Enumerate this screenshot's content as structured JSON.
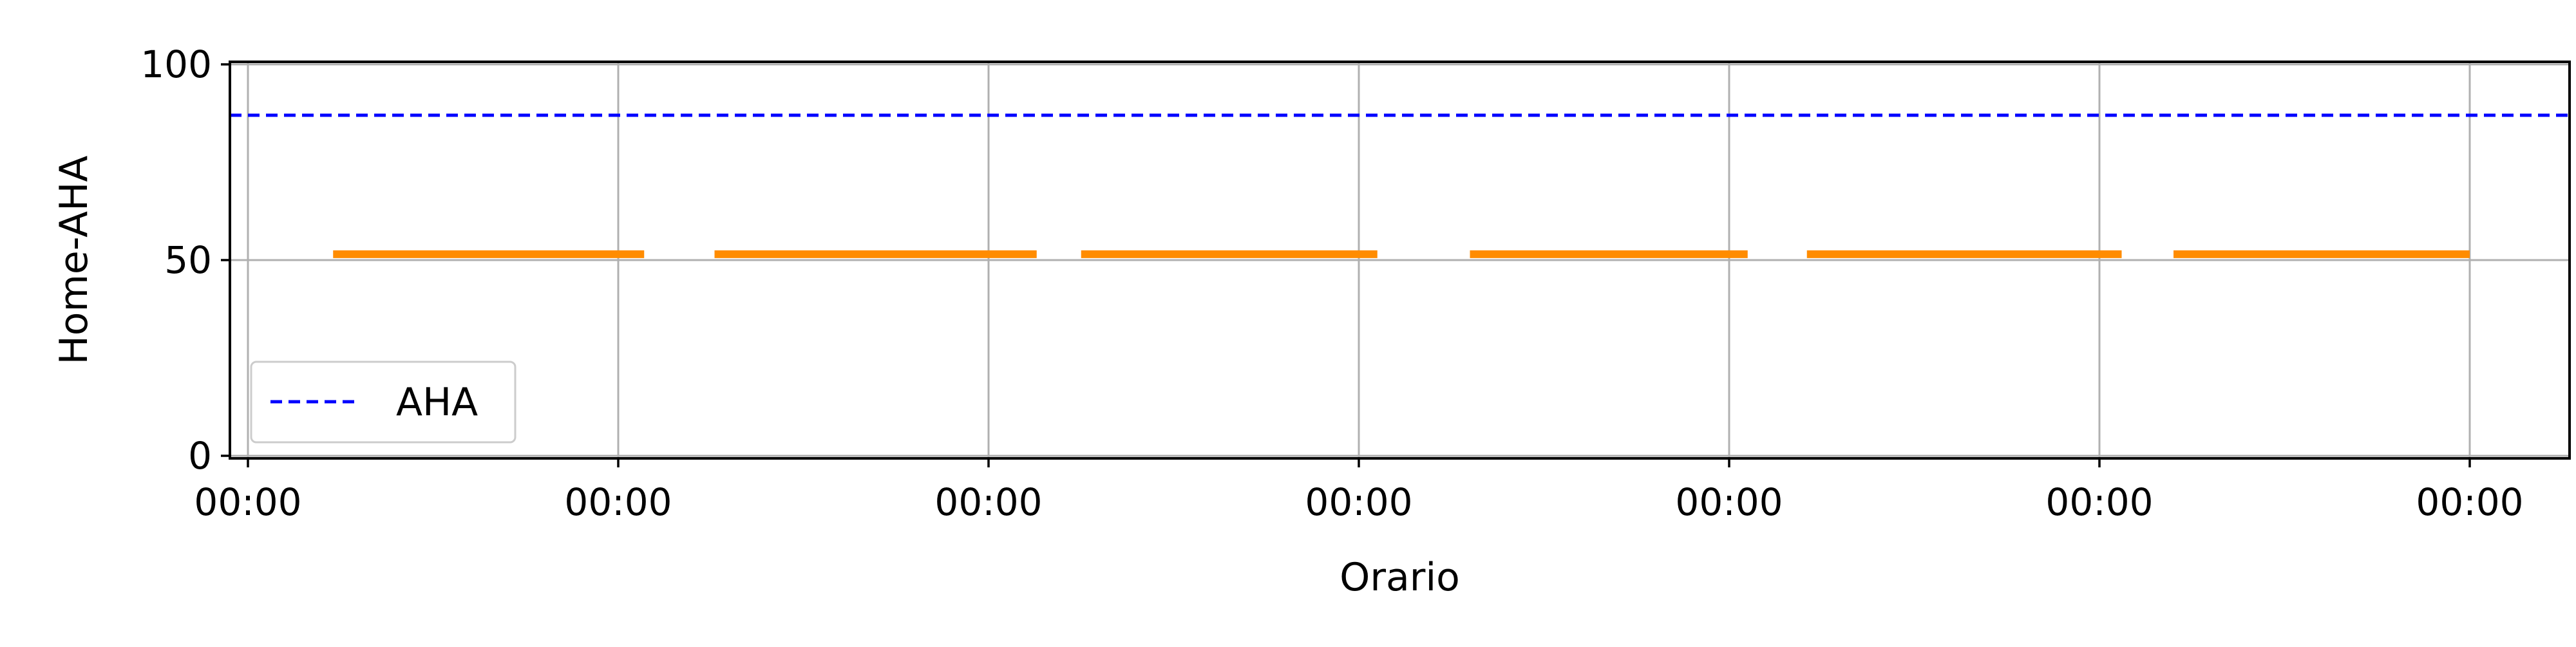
{
  "chart_data": {
    "type": "line",
    "xlabel": "Orario",
    "ylabel": "Home-AHA",
    "ylim": [
      0,
      100
    ],
    "y_ticks": [
      0,
      50,
      100
    ],
    "x_tick_labels": [
      "00:00",
      "00:00",
      "00:00",
      "00:00",
      "00:00",
      "00:00",
      "00:00"
    ],
    "grid": true,
    "legend_placement": "lower-left",
    "series": [
      {
        "name": "AHA",
        "style": "dashed",
        "color": "#0000ff",
        "value": 87
      },
      {
        "style": "solid",
        "color": "#ff8c00",
        "segments": [
          {
            "x_start": 0.23,
            "x_end": 1.07,
            "y": 51.5
          },
          {
            "x_start": 1.26,
            "x_end": 2.13,
            "y": 51.5
          },
          {
            "x_start": 2.25,
            "x_end": 3.05,
            "y": 51.5
          },
          {
            "x_start": 3.3,
            "x_end": 4.05,
            "y": 51.5
          },
          {
            "x_start": 4.21,
            "x_end": 5.06,
            "y": 51.5
          },
          {
            "x_start": 5.2,
            "x_end": 6.0,
            "y": 51.5
          }
        ]
      }
    ]
  }
}
